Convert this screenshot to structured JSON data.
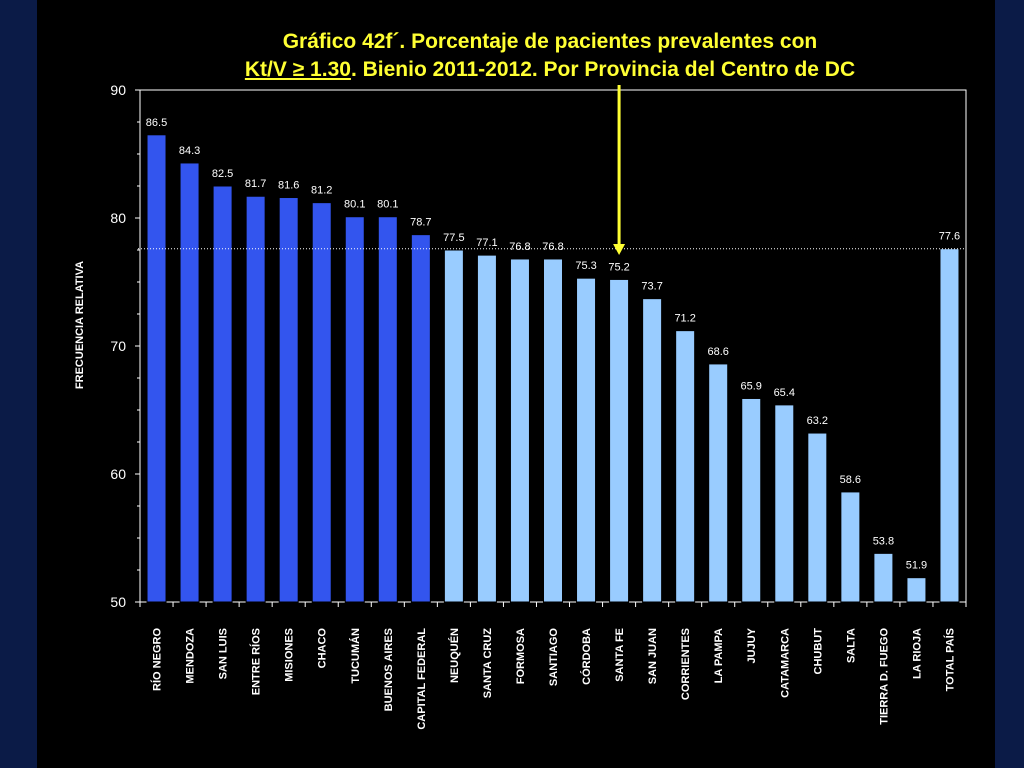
{
  "title": {
    "line1": "Gráfico 42f´. Porcentaje de pacientes prevalentes con",
    "line2_underlined": "Kt/V ≥ 1.30",
    "line2_rest": ". Bienio 2011-2012. Por Provincia del Centro de DC"
  },
  "colors": {
    "background": "#0b1b47",
    "panel": "#000000",
    "title": "#ffff33",
    "bar_centro": "#3355ee",
    "bar_other": "#99ccff",
    "arrow": "#ffff33"
  },
  "chart_data": {
    "type": "bar",
    "title": "Gráfico 42f´. Porcentaje de pacientes prevalentes con Kt/V ≥ 1.30. Bienio 2011-2012. Por Provincia del Centro de DC",
    "xlabel": "",
    "ylabel": "FRECUENCIA RELATIVA",
    "ylim": [
      50,
      90
    ],
    "yticks": [
      50,
      60,
      70,
      80,
      90
    ],
    "reference_line": 77.6,
    "highlight_arrow_category": "SANTA FE",
    "categories": [
      "RÍO NEGRO",
      "MENDOZA",
      "SAN LUIS",
      "ENTRE RÍOS",
      "MISIONES",
      "CHACO",
      "TUCUMÁN",
      "BUENOS AIRES",
      "CAPITAL FEDERAL",
      "NEUQUÉN",
      "SANTA CRUZ",
      "FORMOSA",
      "SANTIAGO",
      "CÓRDOBA",
      "SANTA FE",
      "SAN JUAN",
      "CORRIENTES",
      "LA PAMPA",
      "JUJUY",
      "CATAMARCA",
      "CHUBUT",
      "SALTA",
      "TIERRA D. FUEGO",
      "LA RIOJA",
      "TOTAL PAÍS"
    ],
    "values": [
      86.5,
      84.3,
      82.5,
      81.7,
      81.6,
      81.2,
      80.1,
      80.1,
      78.7,
      77.5,
      77.1,
      76.8,
      76.8,
      75.3,
      75.2,
      73.7,
      71.2,
      68.6,
      65.9,
      65.4,
      63.2,
      58.6,
      53.8,
      51.9,
      77.6
    ],
    "group_dark_count": 9
  }
}
